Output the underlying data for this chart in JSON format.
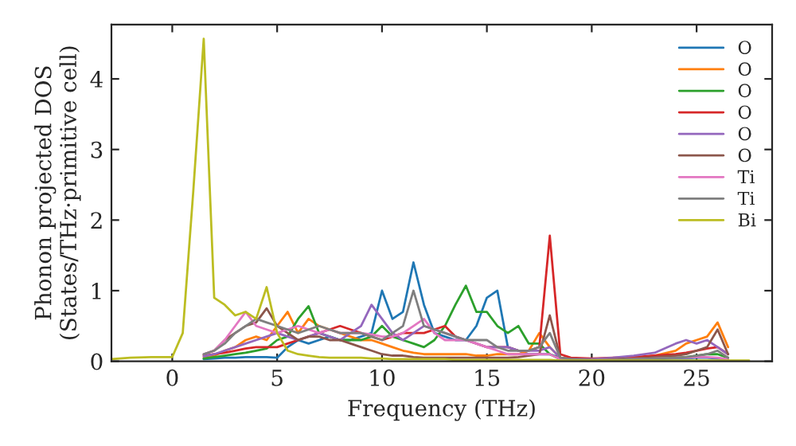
{
  "chart_data": {
    "type": "line",
    "xlabel": "Frequency (THz)",
    "ylabel": "Phonon projected DOS\n(States/THz·primitive cell)",
    "x": [
      -2.9,
      -2,
      -1,
      0,
      0.5,
      1,
      1.5,
      2,
      2.5,
      3,
      3.5,
      4,
      4.5,
      5,
      5.5,
      6,
      6.5,
      7,
      7.5,
      8,
      8.5,
      9,
      9.5,
      10,
      10.5,
      11,
      11.5,
      12,
      12.5,
      13,
      13.5,
      14,
      14.5,
      15,
      15.5,
      16,
      16.5,
      17,
      17.5,
      18,
      18.5,
      19,
      20,
      21,
      22,
      23,
      24,
      24.5,
      25,
      25.5,
      26,
      26.5,
      27,
      27.5
    ],
    "xlim": [
      -2.9,
      28.6
    ],
    "ylim": [
      0,
      4.77
    ],
    "xticks": [
      0,
      5,
      10,
      15,
      20,
      25
    ],
    "yticks": [
      0,
      1,
      2,
      3,
      4
    ],
    "grid": false,
    "legend": "top right",
    "line_style": "solid",
    "marker": "none",
    "series": [
      {
        "name": "O",
        "color": "#1f77b4",
        "values": [
          null,
          null,
          null,
          null,
          null,
          null,
          0.03,
          0.04,
          0.05,
          0.05,
          0.06,
          0.06,
          0.06,
          0.05,
          0.2,
          0.3,
          0.25,
          0.3,
          0.35,
          0.3,
          0.3,
          0.35,
          0.4,
          1.0,
          0.6,
          0.7,
          1.4,
          0.8,
          0.4,
          0.35,
          0.3,
          0.3,
          0.5,
          0.9,
          1.0,
          0.2,
          0.15,
          0.1,
          0.1,
          0.1,
          0.05,
          0.03,
          0.02,
          0.02,
          0.03,
          0.03,
          0.04,
          0.04,
          0.05,
          0.05,
          0.04,
          0.03,
          null,
          null
        ]
      },
      {
        "name": "O",
        "color": "#ff7f0e",
        "values": [
          null,
          null,
          null,
          null,
          null,
          null,
          0.05,
          0.08,
          0.15,
          0.2,
          0.3,
          0.35,
          0.3,
          0.5,
          0.7,
          0.4,
          0.6,
          0.5,
          0.45,
          0.4,
          0.35,
          0.3,
          0.3,
          0.25,
          0.2,
          0.15,
          0.12,
          0.1,
          0.1,
          0.1,
          0.1,
          0.1,
          0.08,
          0.08,
          0.1,
          0.1,
          0.1,
          0.15,
          0.4,
          0.2,
          0.05,
          0.03,
          0.03,
          0.04,
          0.05,
          0.08,
          0.15,
          0.25,
          0.3,
          0.35,
          0.55,
          0.2,
          null,
          null
        ]
      },
      {
        "name": "O",
        "color": "#2ca02c",
        "values": [
          null,
          null,
          null,
          null,
          null,
          null,
          0.04,
          0.06,
          0.08,
          0.1,
          0.12,
          0.15,
          0.18,
          0.3,
          0.35,
          0.6,
          0.78,
          0.4,
          0.35,
          0.3,
          0.3,
          0.3,
          0.35,
          0.5,
          0.35,
          0.3,
          0.25,
          0.2,
          0.3,
          0.5,
          0.8,
          1.07,
          0.7,
          0.7,
          0.5,
          0.4,
          0.5,
          0.25,
          0.25,
          0.1,
          0.03,
          0.02,
          0.02,
          0.02,
          0.03,
          0.04,
          0.05,
          0.06,
          0.08,
          0.1,
          0.1,
          0.05,
          null,
          null
        ]
      },
      {
        "name": "O",
        "color": "#d62728",
        "values": [
          null,
          null,
          null,
          null,
          null,
          null,
          0.08,
          0.1,
          0.12,
          0.15,
          0.18,
          0.2,
          0.2,
          0.2,
          0.25,
          0.3,
          0.35,
          0.4,
          0.45,
          0.5,
          0.45,
          0.4,
          0.35,
          0.3,
          0.35,
          0.4,
          0.4,
          0.4,
          0.45,
          0.5,
          0.35,
          0.3,
          0.25,
          0.2,
          0.2,
          0.2,
          0.15,
          0.15,
          0.2,
          1.78,
          0.1,
          0.05,
          0.04,
          0.05,
          0.06,
          0.08,
          0.1,
          0.12,
          0.15,
          0.18,
          0.2,
          0.1,
          null,
          null
        ]
      },
      {
        "name": "O",
        "color": "#9467bd",
        "values": [
          null,
          null,
          null,
          null,
          null,
          null,
          0.07,
          0.1,
          0.15,
          0.2,
          0.25,
          0.3,
          0.35,
          0.4,
          0.35,
          0.3,
          0.35,
          0.4,
          0.35,
          0.3,
          0.4,
          0.5,
          0.8,
          0.6,
          0.4,
          0.3,
          0.4,
          0.5,
          0.45,
          0.4,
          0.35,
          0.3,
          0.25,
          0.2,
          0.2,
          0.2,
          0.15,
          0.15,
          0.15,
          0.2,
          0.05,
          0.03,
          0.03,
          0.05,
          0.08,
          0.12,
          0.25,
          0.3,
          0.25,
          0.3,
          0.2,
          0.1,
          null,
          null
        ]
      },
      {
        "name": "O",
        "color": "#8c564b",
        "values": [
          null,
          null,
          null,
          null,
          null,
          null,
          0.1,
          0.15,
          0.3,
          0.4,
          0.5,
          0.55,
          0.75,
          0.5,
          0.4,
          0.3,
          0.35,
          0.35,
          0.3,
          0.3,
          0.25,
          0.2,
          0.15,
          0.1,
          0.08,
          0.08,
          0.06,
          0.05,
          0.05,
          0.05,
          0.05,
          0.05,
          0.05,
          0.05,
          0.05,
          0.05,
          0.06,
          0.08,
          0.1,
          0.65,
          0.05,
          0.03,
          0.02,
          0.03,
          0.04,
          0.06,
          0.08,
          0.1,
          0.15,
          0.2,
          0.45,
          0.1,
          null,
          null
        ]
      },
      {
        "name": "Ti",
        "color": "#e377c2",
        "values": [
          null,
          null,
          null,
          null,
          null,
          null,
          0.1,
          0.15,
          0.3,
          0.5,
          0.7,
          0.5,
          0.45,
          0.4,
          0.45,
          0.5,
          0.45,
          0.4,
          0.45,
          0.4,
          0.4,
          0.4,
          0.38,
          0.35,
          0.35,
          0.4,
          0.5,
          0.6,
          0.4,
          0.3,
          0.3,
          0.3,
          0.25,
          0.2,
          0.15,
          0.1,
          0.1,
          0.1,
          0.1,
          0.1,
          0.03,
          0.02,
          0.02,
          0.02,
          0.03,
          0.04,
          0.05,
          0.05,
          0.06,
          0.06,
          0.05,
          0.03,
          null,
          null
        ]
      },
      {
        "name": "Ti",
        "color": "#7f7f7f",
        "values": [
          null,
          null,
          null,
          null,
          null,
          null,
          0.1,
          0.15,
          0.25,
          0.4,
          0.5,
          0.6,
          0.55,
          0.5,
          0.45,
          0.4,
          0.45,
          0.5,
          0.45,
          0.4,
          0.4,
          0.4,
          0.35,
          0.3,
          0.4,
          0.5,
          1.0,
          0.5,
          0.45,
          0.4,
          0.35,
          0.3,
          0.3,
          0.3,
          0.2,
          0.15,
          0.15,
          0.15,
          0.2,
          0.4,
          0.05,
          0.03,
          0.02,
          0.02,
          0.03,
          0.04,
          0.05,
          0.06,
          0.08,
          0.1,
          0.15,
          0.05,
          null,
          null
        ]
      },
      {
        "name": "Bi",
        "color": "#bcbd22",
        "values": [
          0.03,
          0.05,
          0.06,
          0.06,
          0.4,
          2.4,
          4.57,
          0.9,
          0.8,
          0.65,
          0.7,
          0.6,
          1.05,
          0.4,
          0.15,
          0.1,
          0.08,
          0.06,
          0.05,
          0.05,
          0.05,
          0.05,
          0.04,
          0.04,
          0.03,
          0.03,
          0.03,
          0.03,
          0.03,
          0.03,
          0.02,
          0.02,
          0.02,
          0.02,
          0.02,
          0.02,
          0.02,
          0.02,
          0.02,
          0.02,
          0.01,
          0.01,
          0.01,
          0.01,
          0.01,
          0.01,
          0.01,
          0.01,
          0.01,
          0.01,
          0.01,
          0.01,
          0.01,
          0.01
        ]
      }
    ]
  }
}
